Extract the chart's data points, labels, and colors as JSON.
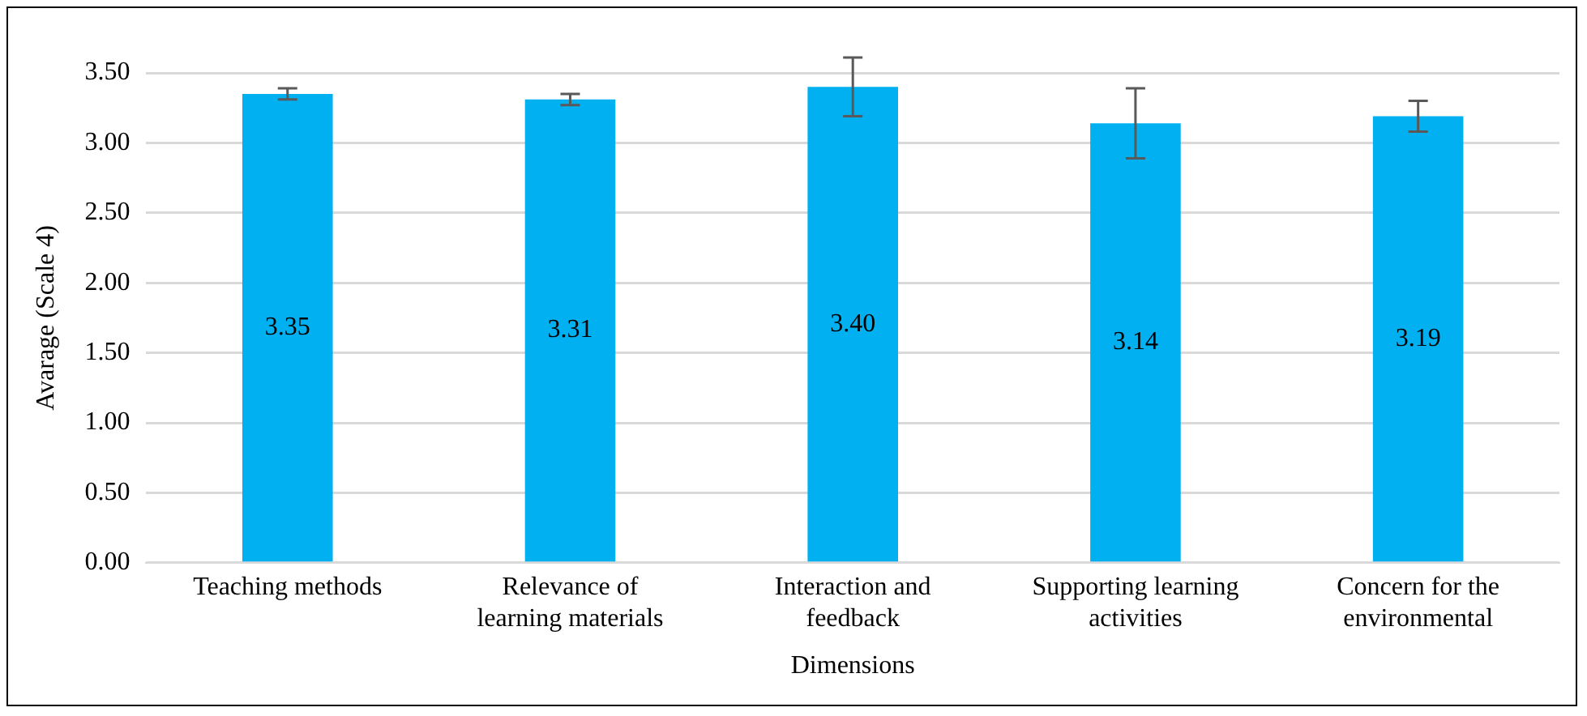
{
  "chart_data": {
    "type": "bar",
    "xlabel": "Dimensions",
    "ylabel": "Avarage (Scale 4)",
    "categories": [
      [
        "Teaching methods"
      ],
      [
        "Relevance of",
        "learning materials"
      ],
      [
        "Interaction and",
        "feedback"
      ],
      [
        "Supporting learning",
        "activities"
      ],
      [
        "Concern for the",
        "environmental"
      ]
    ],
    "values": [
      3.35,
      3.31,
      3.4,
      3.14,
      3.19
    ],
    "errors": [
      0.04,
      0.04,
      0.21,
      0.25,
      0.11
    ],
    "value_labels": [
      "3.35",
      "3.31",
      "3.40",
      "3.14",
      "3.19"
    ],
    "color": "#00b0f0",
    "grid": "y",
    "legend": false,
    "ylim": [
      0,
      3.5
    ],
    "yticks": [
      {
        "value": 0,
        "label": "0.00"
      },
      {
        "value": 0.5,
        "label": "0.50"
      },
      {
        "value": 1,
        "label": "1.00"
      },
      {
        "value": 1.5,
        "label": "1.50"
      },
      {
        "value": 2,
        "label": "2.00"
      },
      {
        "value": 2.5,
        "label": "2.50"
      },
      {
        "value": 3,
        "label": "3.00"
      },
      {
        "value": 3.5,
        "label": "3.50"
      }
    ]
  }
}
